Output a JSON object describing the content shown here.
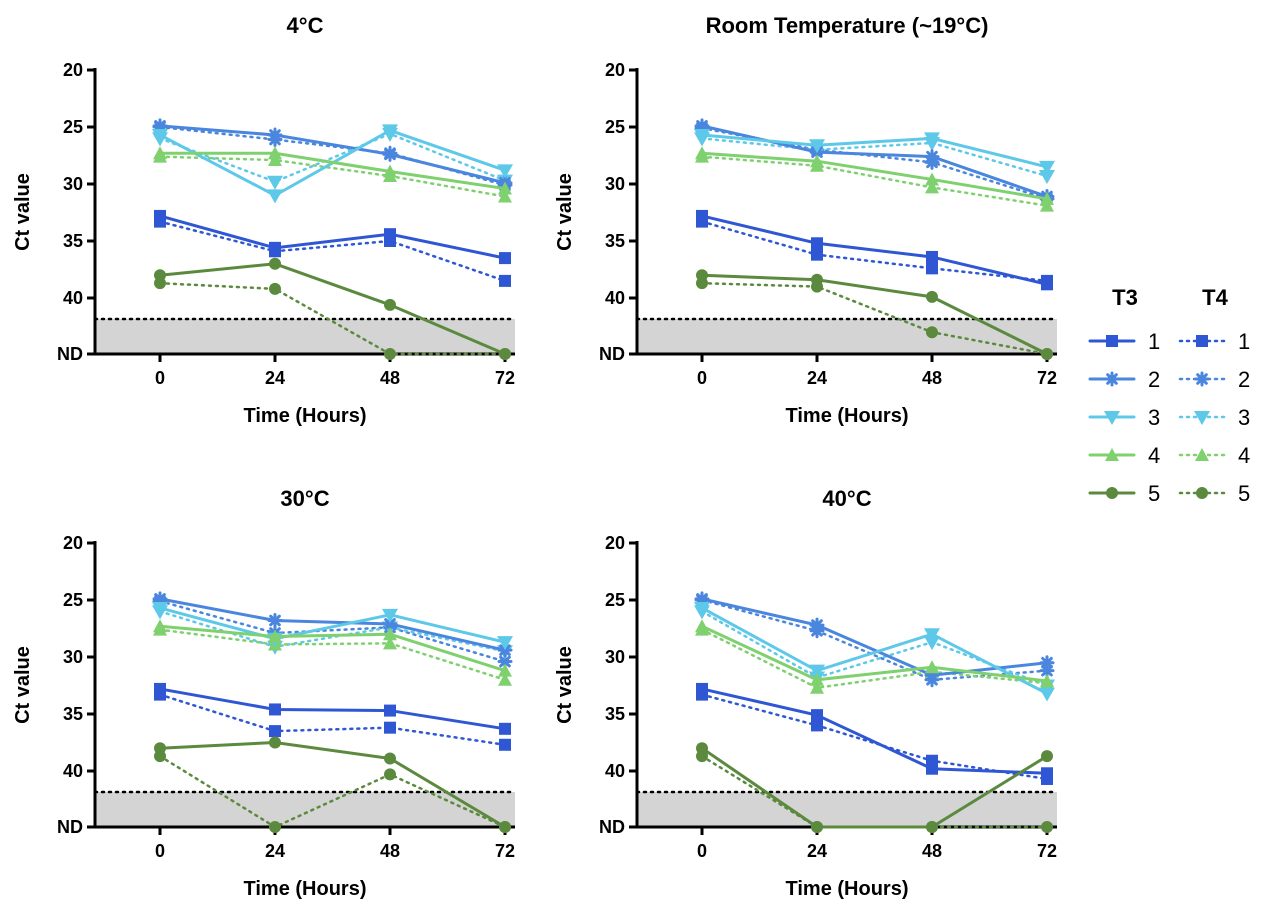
{
  "chart_data": [
    {
      "type": "line",
      "title": "4°C",
      "xlabel": "Time (Hours)",
      "ylabel": "Ct value",
      "x": [
        0,
        24,
        48,
        72
      ],
      "x_ticks": [
        "0",
        "24",
        "48",
        "72"
      ],
      "y_ticks": [
        "20",
        "25",
        "30",
        "35",
        "40",
        "ND"
      ],
      "y_inverted": true,
      "nd_label": "ND",
      "series": [
        {
          "group": "T3",
          "name": "1",
          "values": [
            32.8,
            35.6,
            34.4,
            36.5
          ]
        },
        {
          "group": "T3",
          "name": "2",
          "values": [
            24.9,
            25.7,
            27.4,
            29.9
          ]
        },
        {
          "group": "T3",
          "name": "3",
          "values": [
            25.7,
            31.0,
            25.3,
            28.8
          ]
        },
        {
          "group": "T3",
          "name": "4",
          "values": [
            27.3,
            27.3,
            28.9,
            30.4
          ]
        },
        {
          "group": "T3",
          "name": "5",
          "values": [
            38.0,
            37.0,
            40.6,
            "ND"
          ]
        },
        {
          "group": "T4",
          "name": "1",
          "values": [
            33.3,
            35.9,
            35.0,
            38.5
          ]
        },
        {
          "group": "T4",
          "name": "2",
          "values": [
            25.0,
            26.1,
            27.3,
            30.1
          ]
        },
        {
          "group": "T4",
          "name": "3",
          "values": [
            26.0,
            29.8,
            25.6,
            29.7
          ]
        },
        {
          "group": "T4",
          "name": "4",
          "values": [
            27.6,
            27.9,
            29.3,
            31.1
          ]
        },
        {
          "group": "T4",
          "name": "5",
          "values": [
            38.7,
            39.2,
            "ND",
            "ND"
          ]
        }
      ]
    },
    {
      "type": "line",
      "title": "Room Temperature (~19°C)",
      "xlabel": "Time (Hours)",
      "ylabel": "Ct value",
      "x": [
        0,
        24,
        48,
        72
      ],
      "x_ticks": [
        "0",
        "24",
        "48",
        "72"
      ],
      "y_ticks": [
        "20",
        "25",
        "30",
        "35",
        "40",
        "ND"
      ],
      "y_inverted": true,
      "nd_label": "ND",
      "series": [
        {
          "group": "T3",
          "name": "1",
          "values": [
            32.8,
            35.2,
            36.4,
            38.8
          ]
        },
        {
          "group": "T3",
          "name": "2",
          "values": [
            24.9,
            27.2,
            27.6,
            31.1
          ]
        },
        {
          "group": "T3",
          "name": "3",
          "values": [
            25.7,
            26.6,
            26.0,
            28.5
          ]
        },
        {
          "group": "T3",
          "name": "4",
          "values": [
            27.3,
            28.0,
            29.6,
            31.3
          ]
        },
        {
          "group": "T3",
          "name": "5",
          "values": [
            38.0,
            38.4,
            39.9,
            "ND"
          ]
        },
        {
          "group": "T4",
          "name": "1",
          "values": [
            33.3,
            36.2,
            37.4,
            38.5
          ]
        },
        {
          "group": "T4",
          "name": "2",
          "values": [
            25.1,
            27.0,
            28.1,
            31.3
          ]
        },
        {
          "group": "T4",
          "name": "3",
          "values": [
            26.0,
            27.0,
            26.4,
            29.3
          ]
        },
        {
          "group": "T4",
          "name": "4",
          "values": [
            27.6,
            28.4,
            30.3,
            31.9
          ]
        },
        {
          "group": "T4",
          "name": "5",
          "values": [
            38.7,
            39.0,
            43.0,
            "ND"
          ]
        }
      ]
    },
    {
      "type": "line",
      "title": "30°C",
      "xlabel": "Time (Hours)",
      "ylabel": "Ct value",
      "x": [
        0,
        24,
        48,
        72
      ],
      "x_ticks": [
        "0",
        "24",
        "48",
        "72"
      ],
      "y_ticks": [
        "20",
        "25",
        "30",
        "35",
        "40",
        "ND"
      ],
      "y_inverted": true,
      "nd_label": "ND",
      "series": [
        {
          "group": "T3",
          "name": "1",
          "values": [
            32.8,
            34.6,
            34.7,
            36.3
          ]
        },
        {
          "group": "T3",
          "name": "2",
          "values": [
            24.9,
            26.8,
            27.1,
            29.4
          ]
        },
        {
          "group": "T3",
          "name": "3",
          "values": [
            25.7,
            28.4,
            26.3,
            28.7
          ]
        },
        {
          "group": "T3",
          "name": "4",
          "values": [
            27.3,
            28.2,
            28.0,
            31.2
          ]
        },
        {
          "group": "T3",
          "name": "5",
          "values": [
            38.0,
            37.5,
            38.9,
            "ND"
          ]
        },
        {
          "group": "T4",
          "name": "1",
          "values": [
            33.3,
            36.5,
            36.2,
            37.7
          ]
        },
        {
          "group": "T4",
          "name": "2",
          "values": [
            25.1,
            27.9,
            27.4,
            30.4
          ]
        },
        {
          "group": "T4",
          "name": "3",
          "values": [
            26.0,
            29.1,
            27.4,
            29.5
          ]
        },
        {
          "group": "T4",
          "name": "4",
          "values": [
            27.6,
            28.9,
            28.8,
            32.0
          ]
        },
        {
          "group": "T4",
          "name": "5",
          "values": [
            38.7,
            "ND",
            40.3,
            "ND"
          ]
        }
      ]
    },
    {
      "type": "line",
      "title": "40°C",
      "xlabel": "Time (Hours)",
      "ylabel": "Ct value",
      "x": [
        0,
        24,
        48,
        72
      ],
      "x_ticks": [
        "0",
        "24",
        "48",
        "72"
      ],
      "y_ticks": [
        "20",
        "25",
        "30",
        "35",
        "40",
        "ND"
      ],
      "y_inverted": true,
      "nd_label": "ND",
      "series": [
        {
          "group": "T3",
          "name": "1",
          "values": [
            32.8,
            35.1,
            39.8,
            40.2
          ]
        },
        {
          "group": "T3",
          "name": "2",
          "values": [
            24.9,
            27.2,
            31.6,
            30.5
          ]
        },
        {
          "group": "T3",
          "name": "3",
          "values": [
            25.7,
            31.2,
            28.0,
            33.2
          ]
        },
        {
          "group": "T3",
          "name": "4",
          "values": [
            27.3,
            32.0,
            30.9,
            32.1
          ]
        },
        {
          "group": "T3",
          "name": "5",
          "values": [
            38.0,
            "ND",
            "ND",
            38.7
          ]
        },
        {
          "group": "T4",
          "name": "1",
          "values": [
            33.3,
            36.0,
            39.1,
            40.7
          ]
        },
        {
          "group": "T4",
          "name": "2",
          "values": [
            25.0,
            27.7,
            32.0,
            31.2
          ]
        },
        {
          "group": "T4",
          "name": "3",
          "values": [
            26.0,
            31.8,
            28.7,
            32.5
          ]
        },
        {
          "group": "T4",
          "name": "4",
          "values": [
            27.6,
            32.7,
            31.3,
            32.3
          ]
        },
        {
          "group": "T4",
          "name": "5",
          "values": [
            38.7,
            "ND",
            "ND",
            "ND"
          ]
        }
      ]
    }
  ],
  "legend": {
    "groups": [
      {
        "title": "T3",
        "style": "solid",
        "items": [
          "1",
          "2",
          "3",
          "4",
          "5"
        ]
      },
      {
        "title": "T4",
        "style": "dotted",
        "items": [
          "1",
          "2",
          "3",
          "4",
          "5"
        ]
      }
    ]
  },
  "series_styles": {
    "1": {
      "color": "#2f57d4",
      "marker": "square"
    },
    "2": {
      "color": "#4a86dd",
      "marker": "asterisk"
    },
    "3": {
      "color": "#5ec8e8",
      "marker": "triangle-down"
    },
    "4": {
      "color": "#7fd06e",
      "marker": "triangle-up"
    },
    "5": {
      "color": "#5b8a3e",
      "marker": "circle"
    }
  },
  "nd_band_color": "#d4d4d4"
}
